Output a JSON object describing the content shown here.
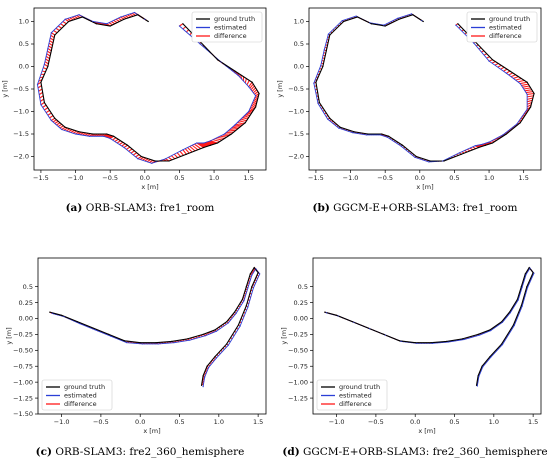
{
  "colors": {
    "ground_truth": "#000000",
    "estimated": "#2b3fd6",
    "difference": "#ff1a1a"
  },
  "captions": [
    {
      "tag": "(a)",
      "text": "ORB-SLAM3: fre1_room"
    },
    {
      "tag": "(b)",
      "text": "GGCM-E+ORB-SLAM3: fre1_room"
    },
    {
      "tag": "(c)",
      "text": "ORB-SLAM3: fre2_360_hemisphere"
    },
    {
      "tag": "(d)",
      "text": "GGCM-E+ORB-SLAM3: fre2_360_hemisphere"
    }
  ],
  "chart_data": [
    {
      "type": "line",
      "xlabel": "x [m]",
      "ylabel": "y [m]",
      "xlim": [
        -1.6,
        1.75
      ],
      "ylim": [
        -2.3,
        1.3
      ],
      "xticks": [
        -1.5,
        -1.0,
        -0.5,
        0.0,
        0.5,
        1.0,
        1.5
      ],
      "xtick_labels": [
        "−1.5",
        "−1.0",
        "−0.5",
        "0.0",
        "0.5",
        "1.0",
        "1.5"
      ],
      "yticks": [
        1.0,
        0.5,
        0.0,
        -0.5,
        -1.0,
        -1.5,
        -2.0
      ],
      "ytick_labels": [
        "1.0",
        "0.5",
        "0.0",
        "−0.5",
        "−1.0",
        "−1.5",
        "−2.0"
      ],
      "legend": [
        "ground truth",
        "estimated",
        "difference"
      ],
      "legend_position": "top-right",
      "series": [
        {
          "name": "ground truth",
          "x": [
            0.55,
            0.8,
            1.05,
            1.3,
            1.55,
            1.65,
            1.6,
            1.45,
            1.25,
            1.05,
            0.95,
            0.85,
            0.6,
            0.35,
            0.15,
            -0.05,
            -0.25,
            -0.45,
            -0.55,
            -0.75,
            -0.95,
            -1.15,
            -1.3,
            -1.45,
            -1.5,
            -1.4,
            -1.35,
            -1.3,
            -1.1,
            -0.9,
            -0.7,
            -0.5,
            -0.3,
            -0.1,
            0.05
          ],
          "y": [
            0.95,
            0.55,
            0.15,
            -0.1,
            -0.35,
            -0.6,
            -0.9,
            -1.25,
            -1.5,
            -1.7,
            -1.75,
            -1.8,
            -1.95,
            -2.1,
            -2.1,
            -2.0,
            -1.75,
            -1.55,
            -1.5,
            -1.5,
            -1.45,
            -1.35,
            -1.15,
            -0.8,
            -0.35,
            0.0,
            0.35,
            0.7,
            1.0,
            1.1,
            0.95,
            0.9,
            1.05,
            1.15,
            1.0
          ]
        },
        {
          "name": "estimated",
          "x": [
            0.5,
            0.8,
            1.1,
            1.35,
            1.5,
            1.6,
            1.5,
            1.3,
            1.15,
            0.95,
            0.85,
            0.75,
            0.55,
            0.3,
            0.1,
            -0.1,
            -0.3,
            -0.5,
            -0.6,
            -0.8,
            -1.0,
            -1.2,
            -1.35,
            -1.5,
            -1.55,
            -1.45,
            -1.4,
            -1.35,
            -1.15,
            -0.95,
            -0.75,
            -0.55,
            -0.35,
            -0.15,
            0.0
          ],
          "y": [
            0.9,
            0.5,
            0.1,
            -0.2,
            -0.45,
            -0.65,
            -1.0,
            -1.3,
            -1.5,
            -1.65,
            -1.7,
            -1.7,
            -1.85,
            -2.05,
            -2.15,
            -2.05,
            -1.8,
            -1.6,
            -1.55,
            -1.55,
            -1.5,
            -1.4,
            -1.2,
            -0.85,
            -0.4,
            0.05,
            0.4,
            0.75,
            1.05,
            1.15,
            1.0,
            0.95,
            1.1,
            1.2,
            1.05
          ]
        }
      ]
    },
    {
      "type": "line",
      "xlabel": "x [m]",
      "ylabel": "y [m]",
      "xlim": [
        -1.6,
        1.75
      ],
      "ylim": [
        -2.3,
        1.3
      ],
      "xticks": [
        -1.5,
        -1.0,
        -0.5,
        0.0,
        0.5,
        1.0,
        1.5
      ],
      "xtick_labels": [
        "−1.5",
        "−1.0",
        "−0.5",
        "0.0",
        "0.5",
        "1.0",
        "1.5"
      ],
      "yticks": [
        1.0,
        0.5,
        0.0,
        -0.5,
        -1.0,
        -1.5,
        -2.0
      ],
      "ytick_labels": [
        "1.0",
        "0.5",
        "0.0",
        "−0.5",
        "−1.0",
        "−1.5",
        "−2.0"
      ],
      "legend": [
        "ground truth",
        "estimated",
        "difference"
      ],
      "legend_position": "top-right",
      "series": [
        {
          "name": "ground truth",
          "x": [
            0.55,
            0.8,
            1.05,
            1.3,
            1.55,
            1.65,
            1.6,
            1.45,
            1.25,
            1.05,
            0.95,
            0.85,
            0.6,
            0.35,
            0.15,
            -0.05,
            -0.25,
            -0.45,
            -0.55,
            -0.75,
            -0.95,
            -1.15,
            -1.3,
            -1.45,
            -1.5,
            -1.4,
            -1.35,
            -1.3,
            -1.1,
            -0.9,
            -0.7,
            -0.5,
            -0.3,
            -0.1,
            0.05
          ],
          "y": [
            0.95,
            0.55,
            0.15,
            -0.1,
            -0.35,
            -0.6,
            -0.9,
            -1.25,
            -1.5,
            -1.7,
            -1.75,
            -1.8,
            -1.95,
            -2.1,
            -2.1,
            -2.0,
            -1.75,
            -1.55,
            -1.5,
            -1.5,
            -1.45,
            -1.35,
            -1.15,
            -0.8,
            -0.35,
            0.0,
            0.35,
            0.7,
            1.0,
            1.1,
            0.95,
            0.9,
            1.05,
            1.15,
            1.0
          ]
        },
        {
          "name": "estimated",
          "x": [
            0.52,
            0.78,
            1.0,
            1.25,
            1.45,
            1.55,
            1.55,
            1.4,
            1.2,
            1.0,
            0.9,
            0.8,
            0.57,
            0.33,
            0.13,
            -0.07,
            -0.27,
            -0.47,
            -0.57,
            -0.77,
            -0.97,
            -1.17,
            -1.33,
            -1.47,
            -1.53,
            -1.43,
            -1.38,
            -1.32,
            -1.12,
            -0.92,
            -0.72,
            -0.52,
            -0.32,
            -0.12,
            0.03
          ],
          "y": [
            0.92,
            0.52,
            0.12,
            -0.15,
            -0.38,
            -0.62,
            -0.95,
            -1.28,
            -1.52,
            -1.68,
            -1.73,
            -1.76,
            -1.92,
            -2.1,
            -2.12,
            -2.02,
            -1.77,
            -1.57,
            -1.52,
            -1.52,
            -1.47,
            -1.37,
            -1.17,
            -0.82,
            -0.37,
            0.02,
            0.37,
            0.72,
            1.02,
            1.12,
            0.97,
            0.92,
            1.07,
            1.17,
            1.02
          ]
        }
      ]
    },
    {
      "type": "line",
      "xlabel": "x [m]",
      "ylabel": "y [m]",
      "xlim": [
        -1.3,
        1.6
      ],
      "ylim": [
        -1.5,
        0.95
      ],
      "xticks": [
        -1.0,
        -0.5,
        0.0,
        0.5,
        1.0,
        1.5
      ],
      "xtick_labels": [
        "−1.0",
        "−0.5",
        "0.0",
        "0.5",
        "1.0",
        "1.5"
      ],
      "yticks": [
        0.5,
        0.25,
        0.0,
        -0.25,
        -0.5,
        -0.75,
        -1.0,
        -1.25,
        -1.5
      ],
      "ytick_labels": [
        "0.5",
        "0.25",
        "0.00",
        "−0.25",
        "−0.50",
        "−0.75",
        "−1.00",
        "−1.25",
        "−1.50"
      ],
      "legend": [
        "ground truth",
        "estimated",
        "difference"
      ],
      "legend_position": "bottom-left",
      "series": [
        {
          "name": "ground truth",
          "x": [
            -1.15,
            -1.0,
            -0.8,
            -0.6,
            -0.4,
            -0.2,
            0.0,
            0.2,
            0.4,
            0.6,
            0.8,
            0.95,
            1.1,
            1.2,
            1.3,
            1.35,
            1.4,
            1.45,
            1.5,
            1.42,
            1.35,
            1.25,
            1.1,
            0.95,
            0.85,
            0.8,
            0.78
          ],
          "y": [
            0.1,
            0.05,
            -0.05,
            -0.15,
            -0.25,
            -0.35,
            -0.38,
            -0.38,
            -0.36,
            -0.32,
            -0.25,
            -0.18,
            -0.05,
            0.1,
            0.3,
            0.5,
            0.7,
            0.8,
            0.72,
            0.5,
            0.2,
            -0.1,
            -0.4,
            -0.6,
            -0.75,
            -0.9,
            -1.05
          ]
        },
        {
          "name": "estimated",
          "x": [
            -1.12,
            -0.97,
            -0.77,
            -0.57,
            -0.37,
            -0.17,
            0.03,
            0.23,
            0.43,
            0.63,
            0.83,
            0.97,
            1.12,
            1.22,
            1.32,
            1.37,
            1.42,
            1.47,
            1.52,
            1.44,
            1.37,
            1.27,
            1.12,
            0.97,
            0.87,
            0.82,
            0.8
          ],
          "y": [
            0.08,
            0.03,
            -0.08,
            -0.18,
            -0.28,
            -0.38,
            -0.4,
            -0.4,
            -0.38,
            -0.34,
            -0.27,
            -0.2,
            -0.07,
            0.08,
            0.28,
            0.48,
            0.68,
            0.78,
            0.7,
            0.48,
            0.18,
            -0.12,
            -0.42,
            -0.62,
            -0.77,
            -0.92,
            -1.07
          ]
        }
      ]
    },
    {
      "type": "line",
      "xlabel": "x [m]",
      "ylabel": "y [m]",
      "xlim": [
        -1.3,
        1.6
      ],
      "ylim": [
        -1.5,
        0.95
      ],
      "xticks": [
        -1.0,
        -0.5,
        0.0,
        0.5,
        1.0,
        1.5
      ],
      "xtick_labels": [
        "−1.0",
        "−0.5",
        "0.0",
        "0.5",
        "1.0",
        "1.5"
      ],
      "yticks": [
        0.5,
        0.25,
        0.0,
        -0.25,
        -0.5,
        -0.75,
        -1.0,
        -1.25
      ],
      "ytick_labels": [
        "0.5",
        "0.25",
        "0.00",
        "−0.25",
        "−0.50",
        "−0.75",
        "−1.00",
        "−1.25"
      ],
      "legend": [
        "ground truth",
        "estimated",
        "difference"
      ],
      "legend_position": "bottom-left",
      "series": [
        {
          "name": "ground truth",
          "x": [
            -1.15,
            -1.0,
            -0.8,
            -0.6,
            -0.4,
            -0.2,
            0.0,
            0.2,
            0.4,
            0.6,
            0.8,
            0.95,
            1.1,
            1.2,
            1.3,
            1.35,
            1.4,
            1.45,
            1.5,
            1.42,
            1.35,
            1.25,
            1.1,
            0.95,
            0.85,
            0.8,
            0.78
          ],
          "y": [
            0.1,
            0.05,
            -0.05,
            -0.15,
            -0.25,
            -0.35,
            -0.38,
            -0.38,
            -0.36,
            -0.32,
            -0.25,
            -0.18,
            -0.05,
            0.1,
            0.3,
            0.5,
            0.7,
            0.8,
            0.72,
            0.5,
            0.2,
            -0.1,
            -0.4,
            -0.6,
            -0.75,
            -0.9,
            -1.05
          ]
        },
        {
          "name": "estimated",
          "x": [
            -1.13,
            -0.98,
            -0.78,
            -0.58,
            -0.38,
            -0.18,
            0.02,
            0.22,
            0.42,
            0.62,
            0.82,
            0.96,
            1.11,
            1.21,
            1.31,
            1.36,
            1.41,
            1.46,
            1.51,
            1.43,
            1.36,
            1.26,
            1.11,
            0.96,
            0.86,
            0.81,
            0.79
          ],
          "y": [
            0.09,
            0.04,
            -0.06,
            -0.16,
            -0.26,
            -0.36,
            -0.39,
            -0.39,
            -0.37,
            -0.33,
            -0.26,
            -0.19,
            -0.06,
            0.09,
            0.29,
            0.49,
            0.69,
            0.79,
            0.71,
            0.49,
            0.19,
            -0.11,
            -0.41,
            -0.61,
            -0.76,
            -0.91,
            -1.06
          ]
        }
      ]
    }
  ]
}
